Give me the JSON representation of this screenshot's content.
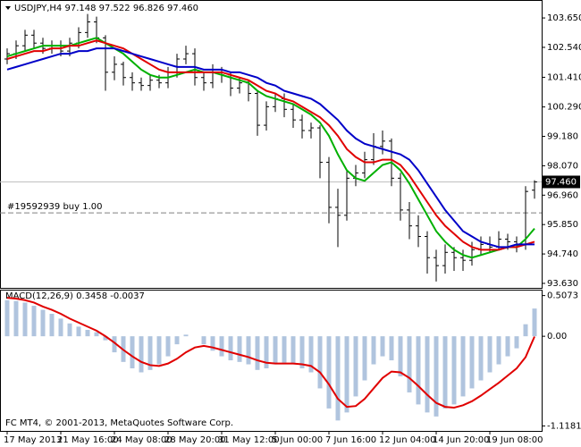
{
  "chart_data": [
    {
      "type": "ohlc",
      "title": "USDJPY,H4  97.148 97.522 96.826 97.460",
      "categories": [
        "17 May 2013",
        null,
        null,
        null,
        null,
        null,
        "21 May 16:00",
        null,
        null,
        null,
        null,
        null,
        "24 May 08:00",
        null,
        null,
        null,
        null,
        null,
        "28 May 20:00",
        null,
        null,
        null,
        null,
        null,
        "31 May 12:00",
        null,
        null,
        null,
        null,
        null,
        "5 Jun 00:00",
        null,
        null,
        null,
        null,
        null,
        "7 Jun 16:00",
        null,
        null,
        null,
        null,
        null,
        "12 Jun 04:00",
        null,
        null,
        null,
        null,
        null,
        "14 Jun 20:00",
        null,
        null,
        null,
        null,
        null,
        "19 Jun 08:00",
        null,
        null,
        null,
        null,
        null
      ],
      "open": [
        102.1,
        102.3,
        102.6,
        103.0,
        102.7,
        102.5,
        102.6,
        102.4,
        102.7,
        103.1,
        103.5,
        102.9,
        101.6,
        101.9,
        101.4,
        101.2,
        101.1,
        101.3,
        101.2,
        101.6,
        102.1,
        102.3,
        101.4,
        101.2,
        101.6,
        101.5,
        101.0,
        101.2,
        100.8,
        99.6,
        100.3,
        100.6,
        100.2,
        99.8,
        99.4,
        99.5,
        98.2,
        96.5,
        96.2,
        97.6,
        97.8,
        98.3,
        98.8,
        99.0,
        97.6,
        96.4,
        95.8,
        95.4,
        94.6,
        94.3,
        94.8,
        94.6,
        94.5,
        94.9,
        95.1,
        95.0,
        95.3,
        95.2,
        95.1,
        97.148
      ],
      "high": [
        102.5,
        102.8,
        103.2,
        103.2,
        102.9,
        102.8,
        102.8,
        102.9,
        103.3,
        103.8,
        103.7,
        103.0,
        102.2,
        102.0,
        101.6,
        101.4,
        101.5,
        101.5,
        101.8,
        102.3,
        102.6,
        102.5,
        101.6,
        101.9,
        101.8,
        101.6,
        101.4,
        101.3,
        100.9,
        100.5,
        100.8,
        100.8,
        100.4,
        100.0,
        99.7,
        99.6,
        98.4,
        97.2,
        97.9,
        98.1,
        98.6,
        99.3,
        99.4,
        99.1,
        97.8,
        96.7,
        96.2,
        95.6,
        94.9,
        95.1,
        95.0,
        94.9,
        95.2,
        95.4,
        95.4,
        95.6,
        95.5,
        95.4,
        97.3,
        97.522
      ],
      "low": [
        101.9,
        102.1,
        102.4,
        102.5,
        102.3,
        102.3,
        102.2,
        102.2,
        102.5,
        102.9,
        102.7,
        100.9,
        101.3,
        101.1,
        100.9,
        100.9,
        100.9,
        101.0,
        101.0,
        101.4,
        101.9,
        101.1,
        100.9,
        101.0,
        101.2,
        100.7,
        100.8,
        100.5,
        99.2,
        99.4,
        100.1,
        99.9,
        99.5,
        99.1,
        99.1,
        97.6,
        95.9,
        95.0,
        96.0,
        97.3,
        97.6,
        98.1,
        98.5,
        97.3,
        96.0,
        95.3,
        95.0,
        94.0,
        93.7,
        94.0,
        94.1,
        94.1,
        94.3,
        94.7,
        94.8,
        94.9,
        94.9,
        94.8,
        94.9,
        96.826
      ],
      "close": [
        102.3,
        102.6,
        103.0,
        102.7,
        102.5,
        102.6,
        102.4,
        102.7,
        103.1,
        103.5,
        102.9,
        101.6,
        101.9,
        101.4,
        101.2,
        101.1,
        101.3,
        101.2,
        101.6,
        102.1,
        102.3,
        101.4,
        101.2,
        101.6,
        101.5,
        101.0,
        101.2,
        100.8,
        99.6,
        100.3,
        100.6,
        100.2,
        99.8,
        99.4,
        99.5,
        98.2,
        96.5,
        96.2,
        97.6,
        97.8,
        98.3,
        98.8,
        99.0,
        97.6,
        96.4,
        95.8,
        95.4,
        94.6,
        94.3,
        94.8,
        94.6,
        94.5,
        94.9,
        95.1,
        95.0,
        95.3,
        95.2,
        95.1,
        97.1,
        97.46
      ],
      "color": "#000000",
      "series": [
        {
          "color": "#00b000",
          "values": [
            102.2,
            102.3,
            102.4,
            102.5,
            102.6,
            102.6,
            102.6,
            102.6,
            102.7,
            102.8,
            102.9,
            102.7,
            102.5,
            102.3,
            102.0,
            101.7,
            101.5,
            101.4,
            101.4,
            101.5,
            101.6,
            101.7,
            101.6,
            101.6,
            101.5,
            101.4,
            101.3,
            101.2,
            100.9,
            100.7,
            100.6,
            100.5,
            100.4,
            100.2,
            100.0,
            99.7,
            99.2,
            98.5,
            97.9,
            97.6,
            97.5,
            97.8,
            98.1,
            98.2,
            97.9,
            97.4,
            96.8,
            96.2,
            95.6,
            95.2,
            94.9,
            94.7,
            94.6,
            94.7,
            94.8,
            94.9,
            95.0,
            95.0,
            95.3,
            95.7
          ]
        },
        {
          "color": "#e00000",
          "values": [
            102.1,
            102.2,
            102.3,
            102.4,
            102.4,
            102.5,
            102.5,
            102.6,
            102.6,
            102.7,
            102.8,
            102.7,
            102.6,
            102.5,
            102.3,
            102.1,
            101.9,
            101.7,
            101.6,
            101.6,
            101.6,
            101.6,
            101.6,
            101.6,
            101.6,
            101.5,
            101.4,
            101.3,
            101.1,
            100.9,
            100.8,
            100.6,
            100.5,
            100.3,
            100.1,
            99.9,
            99.6,
            99.2,
            98.7,
            98.4,
            98.2,
            98.2,
            98.3,
            98.3,
            98.1,
            97.7,
            97.2,
            96.7,
            96.2,
            95.8,
            95.5,
            95.2,
            95.0,
            94.9,
            94.9,
            94.9,
            95.0,
            95.0,
            95.1,
            95.2
          ]
        },
        {
          "color": "#0000c8",
          "values": [
            101.7,
            101.8,
            101.9,
            102.0,
            102.1,
            102.2,
            102.3,
            102.3,
            102.4,
            102.4,
            102.5,
            102.5,
            102.5,
            102.4,
            102.3,
            102.2,
            102.1,
            102.0,
            101.9,
            101.8,
            101.8,
            101.8,
            101.7,
            101.7,
            101.7,
            101.6,
            101.6,
            101.5,
            101.4,
            101.2,
            101.1,
            100.9,
            100.8,
            100.7,
            100.6,
            100.4,
            100.1,
            99.8,
            99.4,
            99.1,
            98.9,
            98.8,
            98.7,
            98.6,
            98.5,
            98.3,
            97.9,
            97.4,
            96.9,
            96.4,
            96.0,
            95.6,
            95.4,
            95.2,
            95.1,
            95.0,
            95.0,
            95.1,
            95.1,
            95.1
          ]
        }
      ],
      "ylim": [
        93.46,
        104.26
      ],
      "yticks": [
        {
          "value": 103.65,
          "label": "103.650"
        },
        {
          "value": 102.54,
          "label": "102.540"
        },
        {
          "value": 101.41,
          "label": "101.410"
        },
        {
          "value": 100.29,
          "label": "100.290"
        },
        {
          "value": 99.18,
          "label": "99.180"
        },
        {
          "value": 98.07,
          "label": "98.070"
        },
        {
          "value": 96.96,
          "label": "96.960"
        },
        {
          "value": 95.85,
          "label": "95.850"
        },
        {
          "value": 94.74,
          "label": "94.740"
        },
        {
          "value": 93.63,
          "label": "93.630"
        }
      ],
      "price_marker": {
        "value": 97.46,
        "label": "97.460"
      },
      "order_line": {
        "value": 96.29,
        "label": "#19592939 buy 1.00"
      }
    },
    {
      "type": "macd",
      "title": "MACD(12,26,9) 0.3458 -0.0037",
      "histogram": {
        "color": "#b0c4de",
        "values": [
          0.45,
          0.44,
          0.42,
          0.38,
          0.33,
          0.28,
          0.22,
          0.16,
          0.12,
          0.08,
          0.05,
          -0.05,
          -0.2,
          -0.32,
          -0.4,
          -0.45,
          -0.42,
          -0.35,
          -0.25,
          -0.1,
          0.02,
          0.0,
          -0.1,
          -0.18,
          -0.25,
          -0.3,
          -0.32,
          -0.35,
          -0.42,
          -0.4,
          -0.35,
          -0.33,
          -0.35,
          -0.4,
          -0.45,
          -0.65,
          -0.9,
          -1.05,
          -0.95,
          -0.75,
          -0.55,
          -0.35,
          -0.25,
          -0.3,
          -0.5,
          -0.7,
          -0.85,
          -0.95,
          -1.0,
          -0.9,
          -0.85,
          -0.75,
          -0.65,
          -0.55,
          -0.45,
          -0.35,
          -0.25,
          -0.15,
          0.15,
          0.3458
        ]
      },
      "signal": {
        "color": "#e00000",
        "values": [
          0.48,
          0.47,
          0.45,
          0.42,
          0.37,
          0.33,
          0.28,
          0.22,
          0.17,
          0.12,
          0.07,
          0.0,
          -0.08,
          -0.17,
          -0.25,
          -0.32,
          -0.36,
          -0.37,
          -0.34,
          -0.28,
          -0.2,
          -0.14,
          -0.12,
          -0.14,
          -0.17,
          -0.2,
          -0.23,
          -0.26,
          -0.3,
          -0.33,
          -0.34,
          -0.34,
          -0.34,
          -0.35,
          -0.37,
          -0.45,
          -0.6,
          -0.78,
          -0.88,
          -0.87,
          -0.78,
          -0.65,
          -0.52,
          -0.44,
          -0.45,
          -0.52,
          -0.62,
          -0.73,
          -0.83,
          -0.88,
          -0.89,
          -0.86,
          -0.81,
          -0.74,
          -0.66,
          -0.58,
          -0.49,
          -0.4,
          -0.26,
          -0.0037
        ]
      },
      "ylim": [
        -1.18,
        0.57
      ],
      "yticks": [
        0.5073,
        {
          "value": 0,
          "label": "0.00"
        },
        -1.1181
      ]
    }
  ],
  "footer": "FC MT4, © 2001-2013, MetaQuotes Software Corp."
}
